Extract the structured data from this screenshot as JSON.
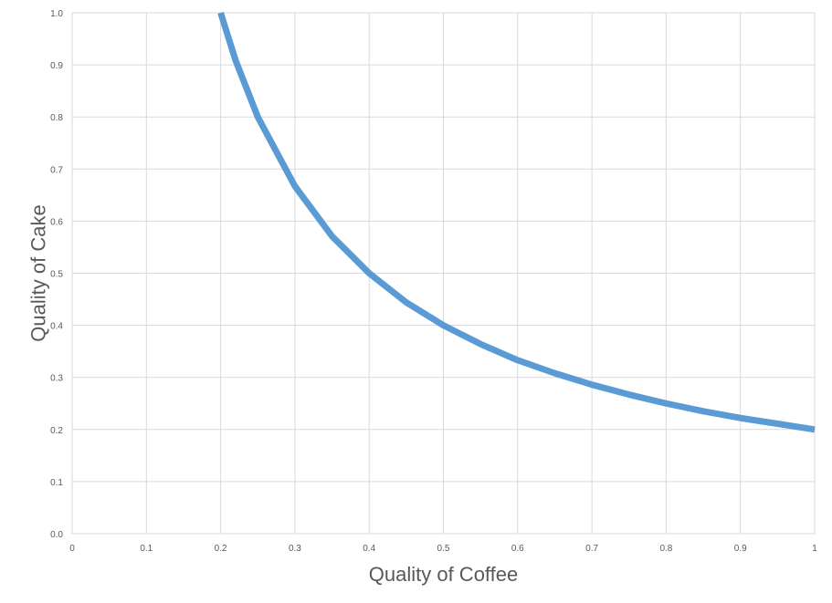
{
  "chart_data": {
    "type": "line",
    "title": "",
    "xlabel": "Quality of Coffee",
    "ylabel": "Quality of Cake",
    "xlim": [
      0,
      1
    ],
    "ylim": [
      0,
      1
    ],
    "x_ticks": [
      0,
      0.1,
      0.2,
      0.3,
      0.4,
      0.5,
      0.6,
      0.7,
      0.8,
      0.9,
      1
    ],
    "x_tick_labels": [
      "0",
      "0.1",
      "0.2",
      "0.3",
      "0.4",
      "0.5",
      "0.6",
      "0.7",
      "0.8",
      "0.9",
      "1"
    ],
    "y_ticks": [
      0,
      0.1,
      0.2,
      0.3,
      0.4,
      0.5,
      0.6,
      0.7,
      0.8,
      0.9,
      1
    ],
    "y_tick_labels": [
      "0.0",
      "0.1",
      "0.2",
      "0.3",
      "0.4",
      "0.5",
      "0.6",
      "0.7",
      "0.8",
      "0.9",
      "1.0"
    ],
    "grid": true,
    "legend": "none",
    "series": [
      {
        "color": "#5b9bd5",
        "x": [
          0.2,
          0.22,
          0.25,
          0.3,
          0.35,
          0.4,
          0.45,
          0.5,
          0.55,
          0.6,
          0.65,
          0.7,
          0.75,
          0.8,
          0.85,
          0.9,
          0.95,
          1.0
        ],
        "y": [
          1.0,
          0.909,
          0.8,
          0.667,
          0.571,
          0.5,
          0.444,
          0.4,
          0.364,
          0.333,
          0.308,
          0.286,
          0.267,
          0.25,
          0.235,
          0.222,
          0.211,
          0.2
        ]
      }
    ]
  }
}
